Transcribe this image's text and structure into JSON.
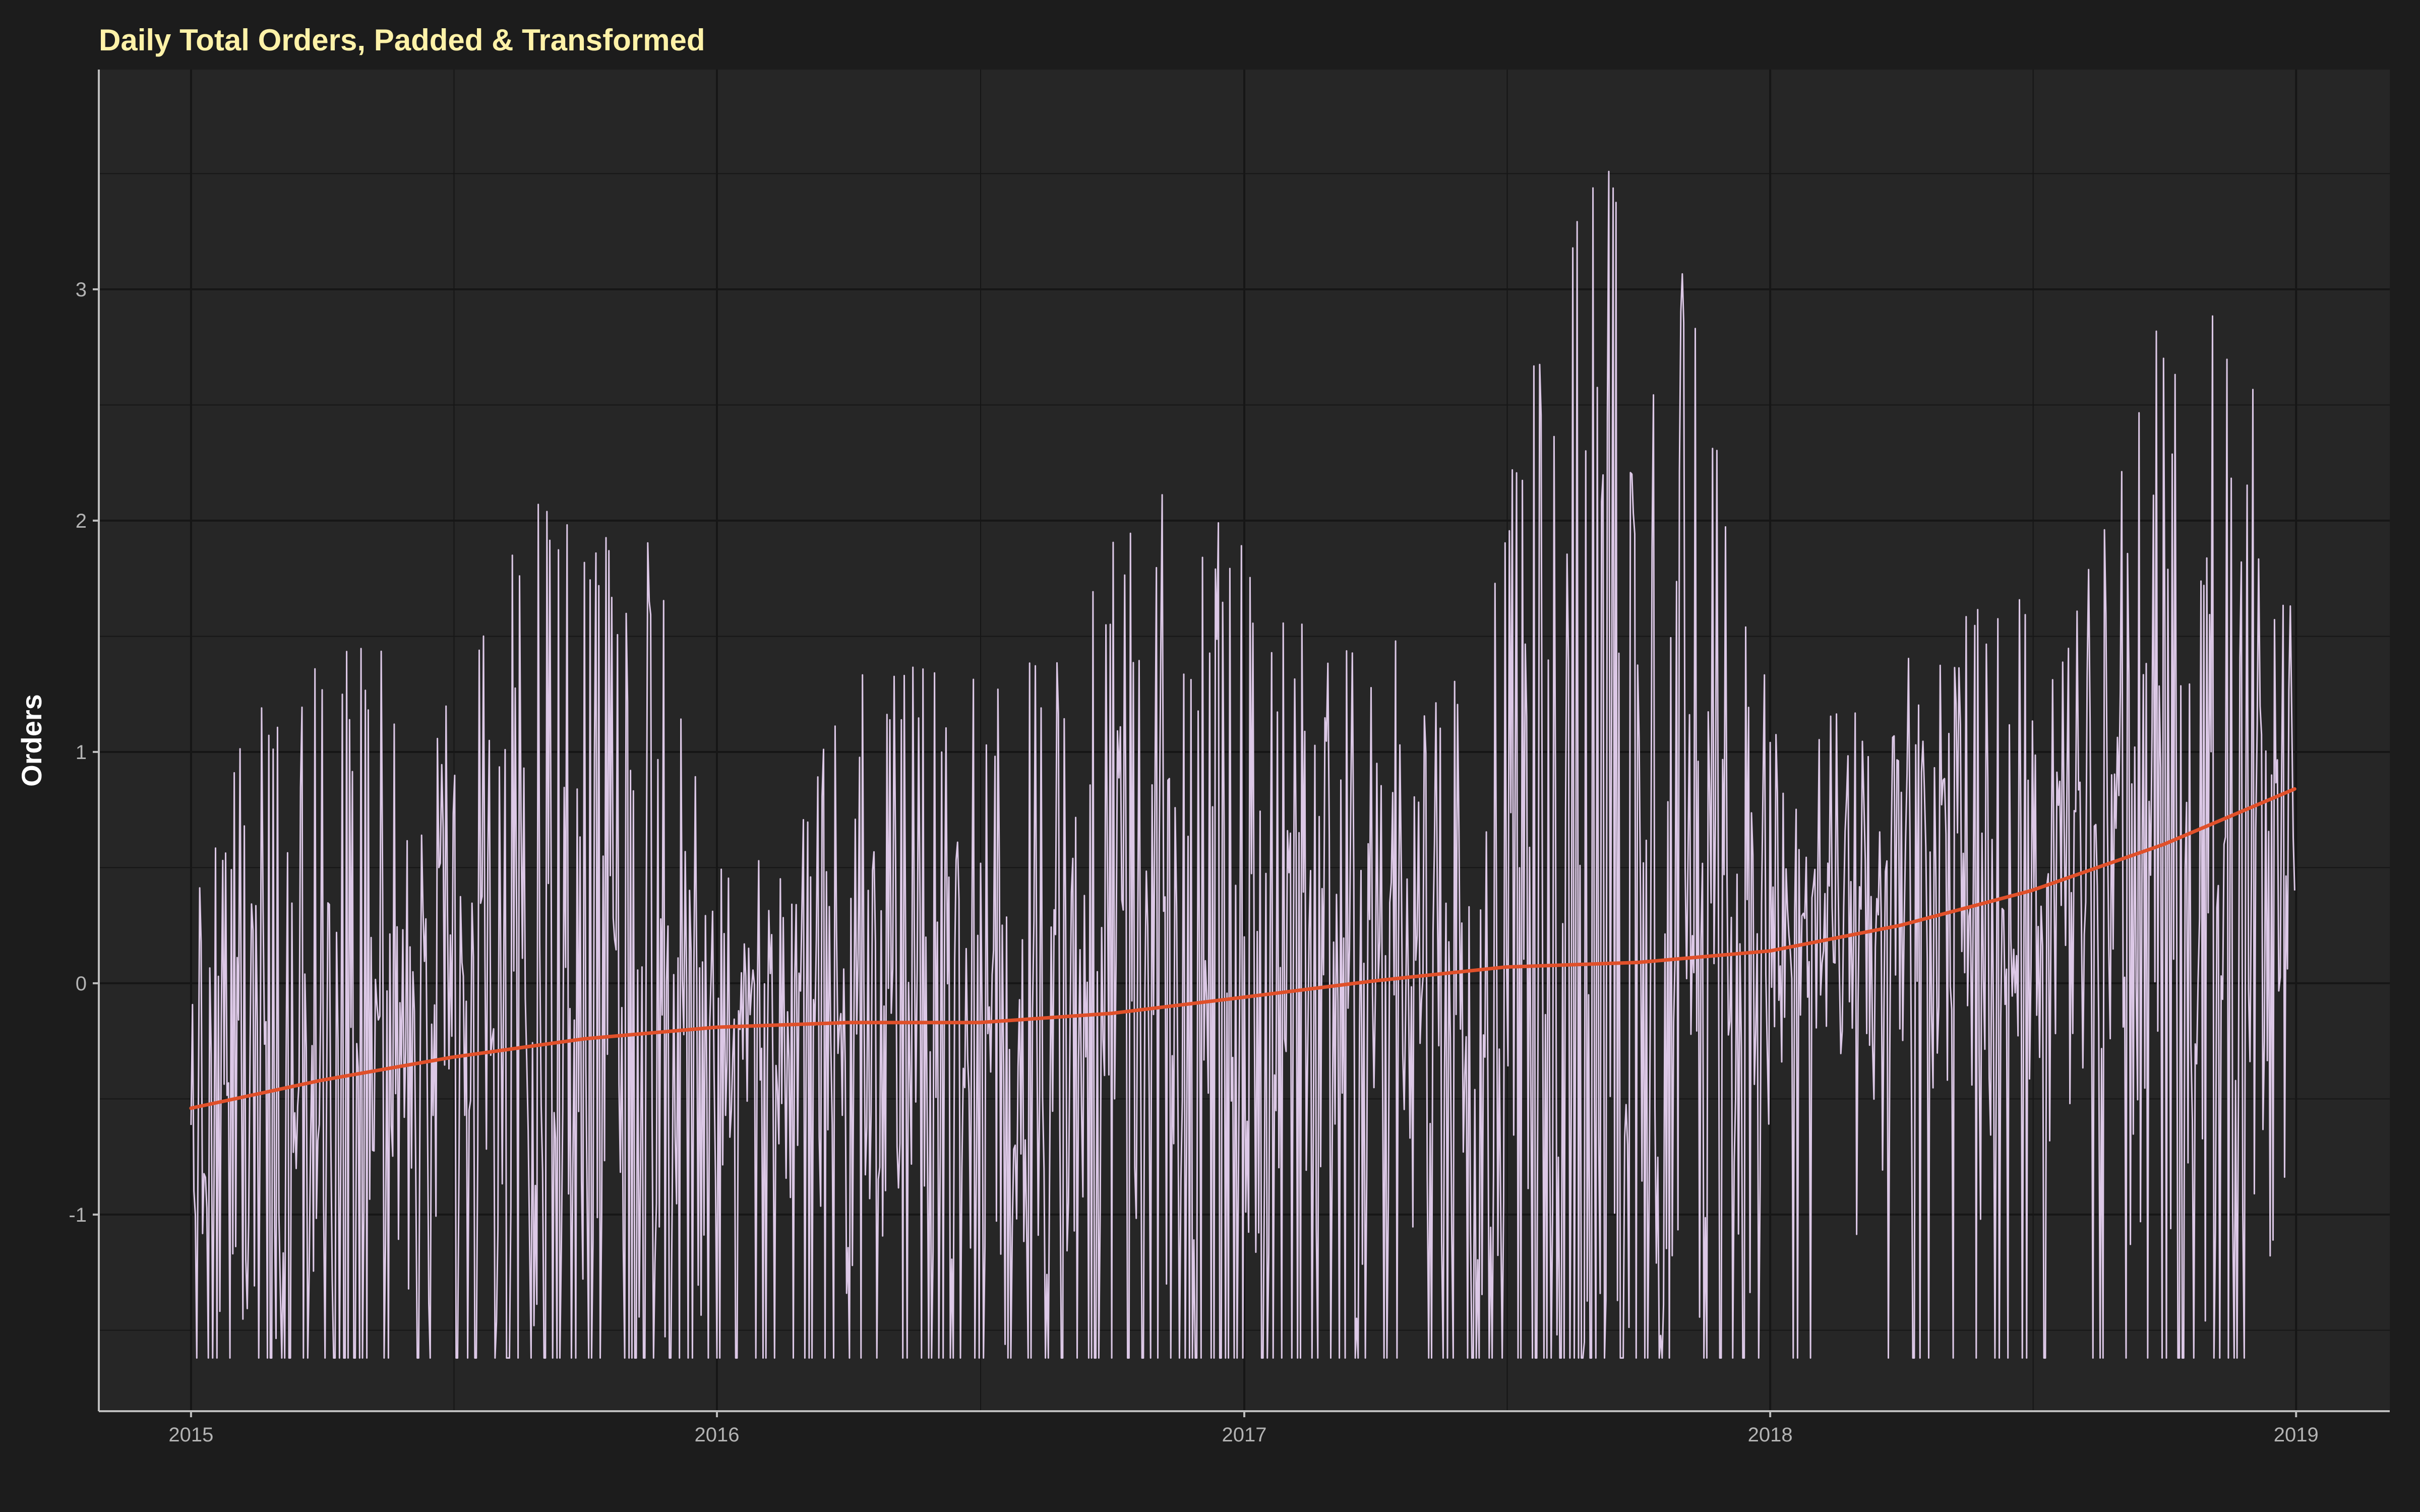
{
  "chart_data": {
    "type": "line",
    "title": "Daily Total Orders, Padded & Transformed",
    "xlabel": "",
    "ylabel": "Orders",
    "x_range": [
      "2014-10-29",
      "2019-03-07"
    ],
    "ylim": [
      -1.85,
      3.95
    ],
    "x_ticks": [
      {
        "date": "2015-01-01",
        "label": "2015"
      },
      {
        "date": "2016-01-01",
        "label": "2016"
      },
      {
        "date": "2017-01-01",
        "label": "2017"
      },
      {
        "date": "2018-01-01",
        "label": "2018"
      },
      {
        "date": "2019-01-01",
        "label": "2019"
      }
    ],
    "y_ticks": [
      -1,
      0,
      1,
      2,
      3
    ],
    "grid": true,
    "legend": "none",
    "colors": {
      "background": "#1c1c1c",
      "panel": "#262626",
      "grid": "#161616",
      "axis": "#bdbdbd",
      "series": "#dcc8e6",
      "trend": "#e0502a",
      "title": "#fff2a8"
    },
    "series": [
      {
        "style": "daily-line",
        "x_start": "2015-01-01",
        "x_end": "2018-12-31",
        "values_note_free": true,
        "anchors": [
          {
            "date": "2015-01-01",
            "low": -1.62,
            "high": 0.8
          },
          {
            "date": "2015-03-15",
            "low": -1.62,
            "high": 1.5
          },
          {
            "date": "2015-06-15",
            "low": -1.62,
            "high": 1.4
          },
          {
            "date": "2015-09-01",
            "low": -1.62,
            "high": 2.18
          },
          {
            "date": "2015-11-15",
            "low": -1.62,
            "high": 1.9
          },
          {
            "date": "2016-01-15",
            "low": -1.62,
            "high": 0.4
          },
          {
            "date": "2016-04-15",
            "low": -1.62,
            "high": 1.4
          },
          {
            "date": "2016-07-15",
            "low": -1.62,
            "high": 1.3
          },
          {
            "date": "2016-09-15",
            "low": -1.62,
            "high": 1.8
          },
          {
            "date": "2016-11-15",
            "low": -1.62,
            "high": 2.18
          },
          {
            "date": "2017-03-01",
            "low": -1.62,
            "high": 1.5
          },
          {
            "date": "2017-06-01",
            "low": -1.62,
            "high": 1.5
          },
          {
            "date": "2017-09-01",
            "low": -1.62,
            "high": 3.65
          },
          {
            "date": "2017-11-01",
            "low": -1.62,
            "high": 3.08
          },
          {
            "date": "2018-01-15",
            "low": -1.62,
            "high": 1.0
          },
          {
            "date": "2018-05-01",
            "low": -1.62,
            "high": 1.6
          },
          {
            "date": "2018-08-01",
            "low": -1.62,
            "high": 1.7
          },
          {
            "date": "2018-09-15",
            "low": -1.62,
            "high": 2.8
          },
          {
            "date": "2018-12-01",
            "low": -1.62,
            "high": 2.93
          },
          {
            "date": "2018-12-31",
            "low": -0.6,
            "high": 1.5
          }
        ]
      },
      {
        "style": "trend-line",
        "x": [
          "2015-01-01",
          "2015-04-01",
          "2015-07-01",
          "2015-10-01",
          "2016-01-01",
          "2016-04-01",
          "2016-07-01",
          "2016-10-01",
          "2017-01-01",
          "2017-04-01",
          "2017-07-01",
          "2017-10-01",
          "2018-01-01",
          "2018-04-01",
          "2018-07-01",
          "2018-10-01",
          "2018-12-31"
        ],
        "values": [
          -0.54,
          -0.42,
          -0.32,
          -0.24,
          -0.19,
          -0.17,
          -0.17,
          -0.13,
          -0.06,
          0.01,
          0.07,
          0.09,
          0.14,
          0.25,
          0.4,
          0.6,
          0.84
        ]
      }
    ]
  }
}
